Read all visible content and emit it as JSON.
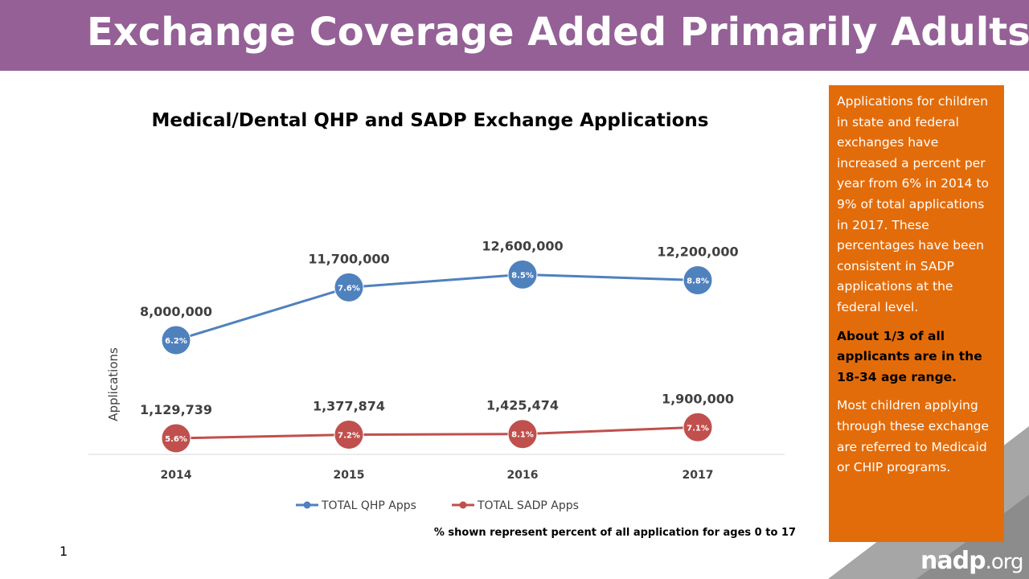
{
  "slide": {
    "title": "Exchange Coverage Added Primarily Adults",
    "number": "1",
    "footnote": "% shown represent percent of all application for ages 0 to 17"
  },
  "side_box": {
    "paragraph1": "Applications for children in state and federal exchanges have increased a percent per year from 6% in 2014 to 9% of total applications in 2017.  These percentages have been consistent in SADP applications at the federal level.",
    "paragraph2": "About 1/3 of all applicants are in the 18-34 age range.",
    "paragraph3": "Most children applying through these exchange are referred to Medicaid or CHIP programs."
  },
  "logo": {
    "main": "nadp",
    "suffix": ".org"
  },
  "colors": {
    "title_bar": "#946096",
    "qhp": "#4f81bd",
    "sadp": "#c0504d",
    "side_box": "#e36c0a"
  },
  "chart_data": {
    "type": "line",
    "title": "Medical/Dental QHP and SADP Exchange Applications",
    "xlabel": "",
    "ylabel": "Applications",
    "categories": [
      "2014",
      "2015",
      "2016",
      "2017"
    ],
    "ylim": [
      0,
      20000000
    ],
    "grid": false,
    "legend": "bottom",
    "series": [
      {
        "name": "TOTAL QHP Apps",
        "color": "#4f81bd",
        "values": [
          8000000,
          11700000,
          12600000,
          12200000
        ],
        "value_labels": [
          "8,000,000",
          "11,700,000",
          "12,600,000",
          "12,200,000"
        ],
        "point_labels": [
          "6.2%",
          "7.6%",
          "8.5%",
          "8.8%"
        ]
      },
      {
        "name": "TOTAL SADP Apps",
        "color": "#c0504d",
        "values": [
          1129739,
          1377874,
          1425474,
          1900000
        ],
        "value_labels": [
          "1,129,739",
          "1,377,874",
          "1,425,474",
          "1,900,000"
        ],
        "point_labels": [
          "5.6%",
          "7.2%",
          "8.1%",
          "7.1%"
        ]
      }
    ]
  }
}
